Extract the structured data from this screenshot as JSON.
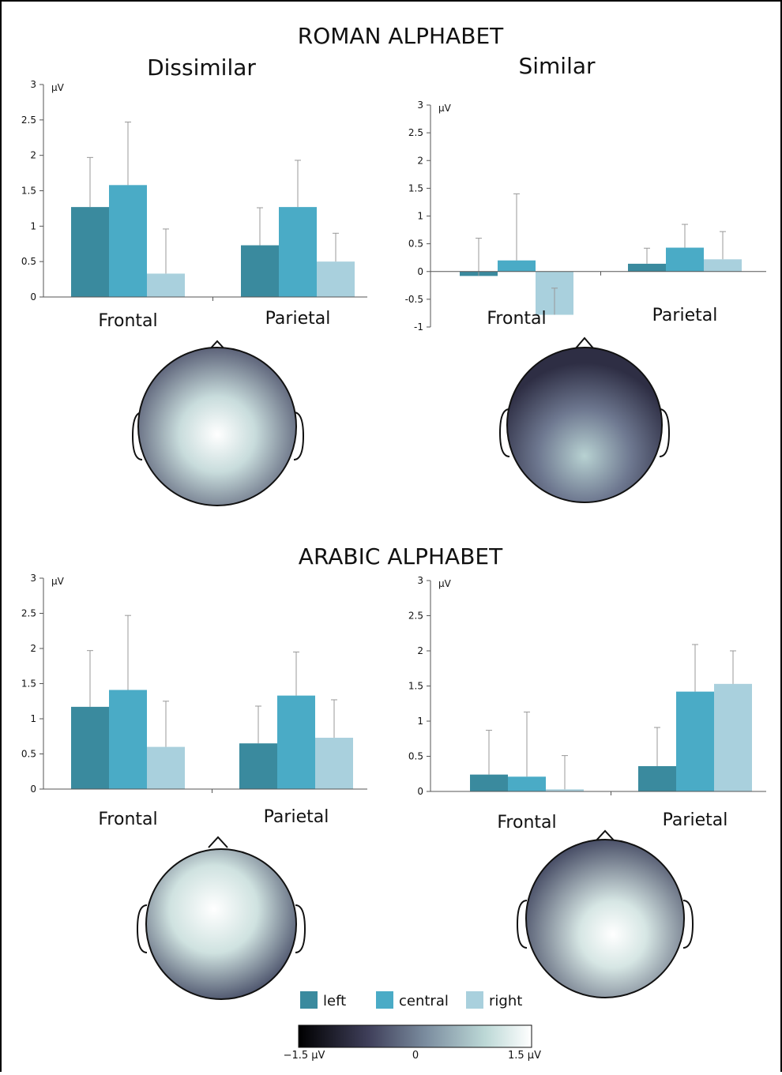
{
  "sections": [
    "ROMAN ALPHABET",
    "ARABIC ALPHABET"
  ],
  "colorbar": {
    "labels": [
      "−1.5 μV",
      "0",
      "1.5 μV"
    ]
  },
  "chart_data": [
    {
      "type": "bar",
      "title": "Dissimilar",
      "y_label": "μV",
      "categories": [
        "Frontal",
        "Parietal"
      ],
      "series": [
        {
          "name": "left",
          "color": "#3a8a9e",
          "values": [
            1.27,
            0.73
          ],
          "errors": [
            0.7,
            0.53
          ]
        },
        {
          "name": "central",
          "color": "#4aabc6",
          "values": [
            1.58,
            1.27
          ],
          "errors": [
            0.89,
            0.66
          ]
        },
        {
          "name": "right",
          "color": "#a9d0dd",
          "values": [
            0.33,
            0.5
          ],
          "errors": [
            0.63,
            0.4
          ]
        }
      ],
      "ylim": [
        0,
        3
      ],
      "yticks": [
        0,
        0.5,
        1,
        1.5,
        2,
        2.5,
        3
      ]
    },
    {
      "type": "bar",
      "title": "Similar",
      "y_label": "μV",
      "categories": [
        "Frontal",
        "Parietal"
      ],
      "series": [
        {
          "name": "left",
          "color": "#3a8a9e",
          "values": [
            -0.08,
            0.14
          ],
          "errors": [
            0.68,
            0.28
          ]
        },
        {
          "name": "central",
          "color": "#4aabc6",
          "values": [
            0.2,
            0.43
          ],
          "errors": [
            1.2,
            0.42
          ]
        },
        {
          "name": "right",
          "color": "#a9d0dd",
          "values": [
            -0.78,
            0.22
          ],
          "errors": [
            0.48,
            0.5
          ]
        }
      ],
      "ylim": [
        -1,
        3
      ],
      "yticks": [
        -1,
        -0.5,
        0,
        0.5,
        1,
        1.5,
        2,
        2.5,
        3
      ]
    },
    {
      "type": "bar",
      "y_label": "μV",
      "categories": [
        "Frontal",
        "Parietal"
      ],
      "series": [
        {
          "name": "left",
          "color": "#3a8a9e",
          "values": [
            1.17,
            0.65
          ],
          "errors": [
            0.8,
            0.53
          ]
        },
        {
          "name": "central",
          "color": "#4aabc6",
          "values": [
            1.41,
            1.33
          ],
          "errors": [
            1.06,
            0.62
          ]
        },
        {
          "name": "right",
          "color": "#a9d0dd",
          "values": [
            0.6,
            0.73
          ],
          "errors": [
            0.65,
            0.54
          ]
        }
      ],
      "ylim": [
        0,
        3
      ],
      "yticks": [
        0,
        0.5,
        1,
        1.5,
        2,
        2.5,
        3
      ]
    },
    {
      "type": "bar",
      "y_label": "μV",
      "categories": [
        "Frontal",
        "Parietal"
      ],
      "series": [
        {
          "name": "left",
          "color": "#3a8a9e",
          "values": [
            0.24,
            0.36
          ],
          "errors": [
            0.63,
            0.55
          ]
        },
        {
          "name": "central",
          "color": "#4aabc6",
          "values": [
            0.21,
            1.42
          ],
          "errors": [
            0.92,
            0.67
          ]
        },
        {
          "name": "right",
          "color": "#a9d0dd",
          "values": [
            0.03,
            1.53
          ],
          "errors": [
            0.48,
            0.47
          ]
        }
      ],
      "ylim": [
        0,
        3
      ],
      "yticks": [
        0,
        0.5,
        1,
        1.5,
        2,
        2.5,
        3
      ]
    }
  ]
}
